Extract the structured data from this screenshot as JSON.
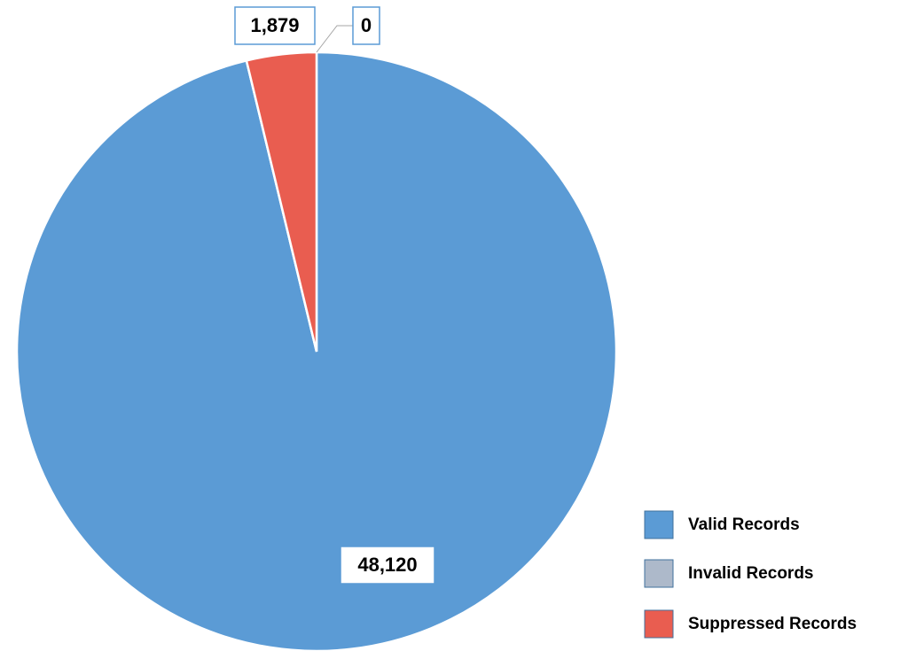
{
  "chart_data": {
    "type": "pie",
    "categories": [
      "Valid Records",
      "Invalid Records",
      "Suppressed Records"
    ],
    "values": [
      48120,
      0,
      1879
    ],
    "value_labels": [
      "48,120",
      "0",
      "1,879"
    ],
    "colors": [
      "#5b9bd5",
      "#adb9ca",
      "#e95d50"
    ],
    "legend": "bottom-right"
  }
}
